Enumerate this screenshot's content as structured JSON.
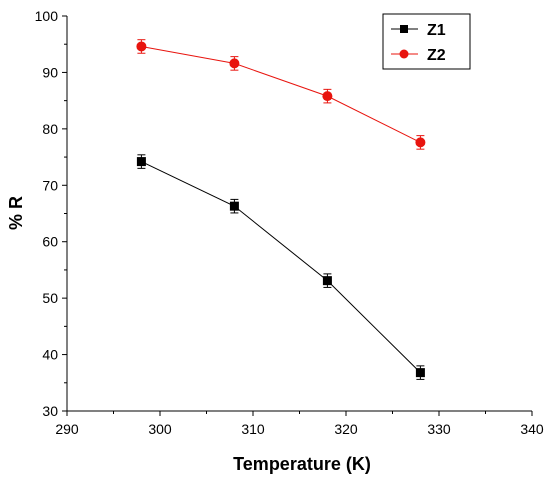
{
  "chart_data": {
    "type": "line",
    "title": "",
    "xlabel": "Temperature (K)",
    "ylabel": "% R",
    "xlim": [
      290,
      340
    ],
    "ylim": [
      30,
      100
    ],
    "xticks": [
      290,
      300,
      310,
      320,
      330,
      340
    ],
    "yticks": [
      30,
      40,
      50,
      60,
      70,
      80,
      90,
      100
    ],
    "grid": false,
    "legend_position": "top-right",
    "x": [
      298,
      308,
      318,
      328
    ],
    "series": [
      {
        "name": "Z1",
        "color": "#000000",
        "marker": "square",
        "values": [
          74.2,
          66.3,
          53.1,
          36.8
        ],
        "error": [
          1.2,
          1.2,
          1.2,
          1.2
        ]
      },
      {
        "name": "Z2",
        "color": "#e8140e",
        "marker": "circle",
        "values": [
          94.6,
          91.6,
          85.8,
          77.6
        ],
        "error": [
          1.2,
          1.2,
          1.2,
          1.2
        ]
      }
    ]
  }
}
